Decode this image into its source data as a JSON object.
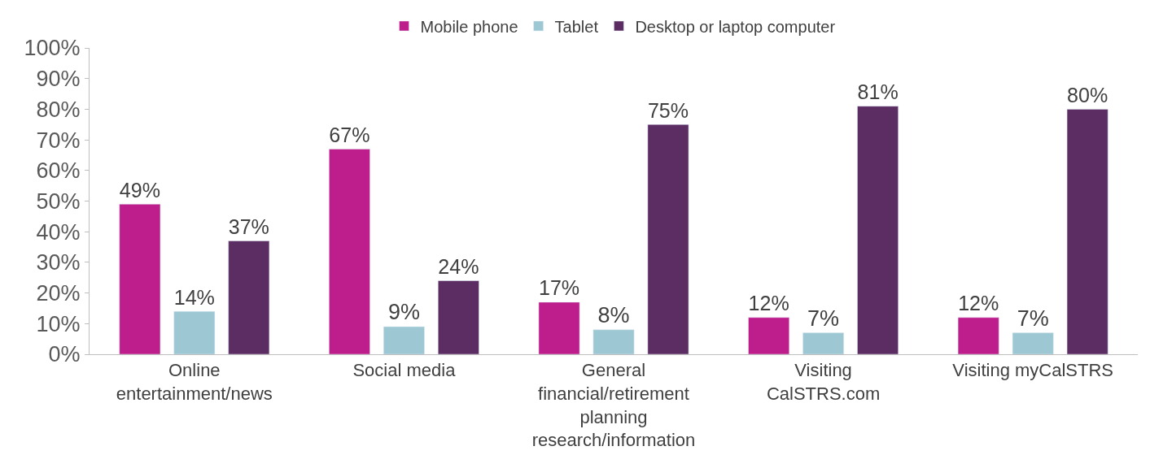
{
  "chart_data": {
    "type": "bar",
    "categories": [
      "Online entertainment/news",
      "Social media",
      "General financial/retirement planning research/information",
      "Visiting CalSTRS.com",
      "Visiting myCalSTRS"
    ],
    "series": [
      {
        "name": "Mobile phone",
        "color": "#be1e8c",
        "values": [
          49,
          67,
          17,
          12,
          12
        ],
        "value_labels": [
          "49%",
          "67%",
          "17%",
          "12%",
          "12%"
        ]
      },
      {
        "name": "Tablet",
        "color": "#9dc8d3",
        "values": [
          14,
          9,
          8,
          7,
          7
        ],
        "value_labels": [
          "14%",
          "9%",
          "8%",
          "7%",
          "7%"
        ]
      },
      {
        "name": "Desktop or laptop computer",
        "color": "#5c2d63",
        "values": [
          37,
          24,
          75,
          81,
          80
        ],
        "value_labels": [
          "37%",
          "24%",
          "75%",
          "81%",
          "80%"
        ]
      }
    ],
    "ylim": [
      0,
      100
    ],
    "yticks": [
      {
        "value": 0,
        "label": "0%"
      },
      {
        "value": 10,
        "label": "10%"
      },
      {
        "value": 20,
        "label": "20%"
      },
      {
        "value": 30,
        "label": "30%"
      },
      {
        "value": 40,
        "label": "40%"
      },
      {
        "value": 50,
        "label": "50%"
      },
      {
        "value": 60,
        "label": "60%"
      },
      {
        "value": 70,
        "label": "70%"
      },
      {
        "value": 80,
        "label": "80%"
      },
      {
        "value": 90,
        "label": "90%"
      },
      {
        "value": 100,
        "label": "100%"
      }
    ],
    "legend": "top"
  }
}
